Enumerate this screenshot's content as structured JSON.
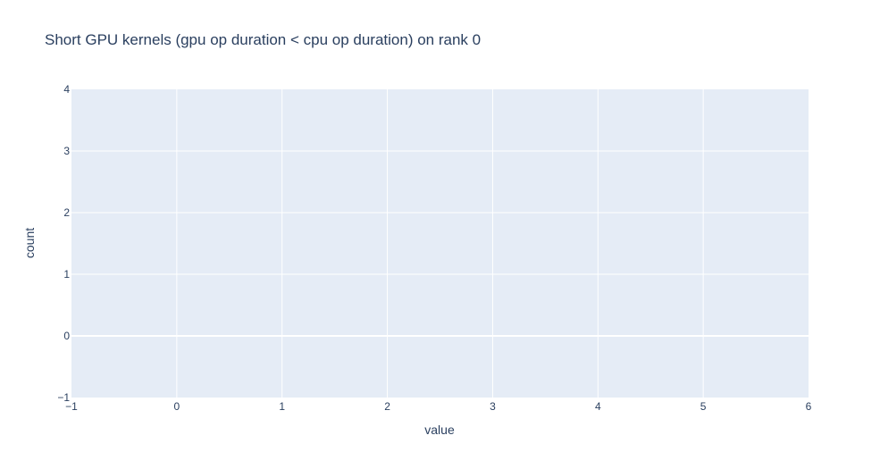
{
  "chart_data": {
    "type": "bar",
    "title": "Short GPU kernels (gpu op duration < cpu op duration) on rank 0",
    "xlabel": "value",
    "ylabel": "count",
    "xlim": [
      -1,
      6
    ],
    "ylim": [
      -1,
      4
    ],
    "x_ticks": [
      -1,
      0,
      1,
      2,
      3,
      4,
      5,
      6
    ],
    "y_ticks": [
      -1,
      0,
      1,
      2,
      3,
      4
    ],
    "grid": true,
    "series": [],
    "colors": {
      "plot_bg": "#e5ecf6",
      "grid": "#ffffff",
      "text": "#2a3f5f"
    }
  }
}
